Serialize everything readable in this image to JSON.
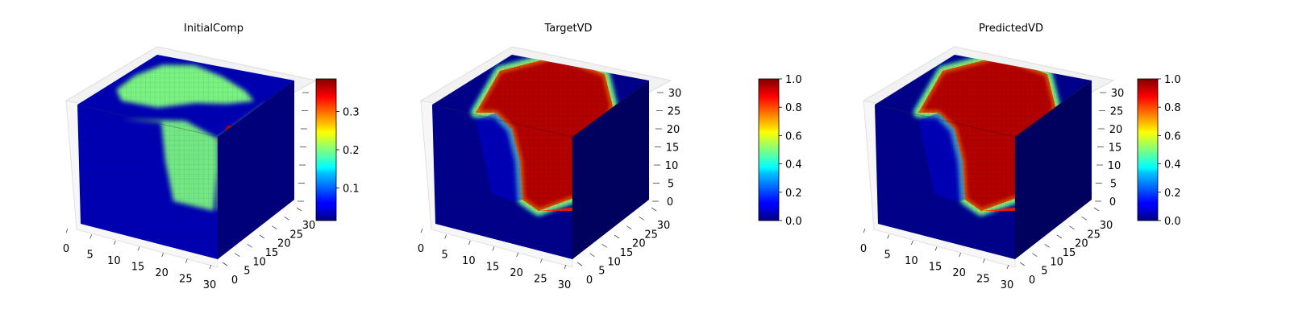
{
  "chart_data": [
    {
      "type": "heatmap",
      "subtype": "3d-voxel",
      "title": "InitialComp",
      "colormap": "jet",
      "colorbar": {
        "min": 0.015,
        "max": 0.385,
        "ticks": [
          0.1,
          0.2,
          0.3
        ],
        "tick_labels": [
          "0.1",
          "0.2",
          "0.3"
        ]
      },
      "x_ticks": [
        "0",
        "5",
        "10",
        "15",
        "20",
        "25",
        "30"
      ],
      "y_ticks": [
        "0",
        "5",
        "10",
        "15",
        "20",
        "25",
        "30"
      ],
      "z_ticks": [
        "",
        "",
        "",
        "",
        "",
        "",
        ""
      ],
      "region": {
        "inside": 0.2,
        "outside": 0.02,
        "hotspot": 0.38
      }
    },
    {
      "type": "heatmap",
      "subtype": "3d-voxel",
      "title": "TargetVD",
      "colormap": "jet",
      "colorbar": {
        "min": 0.0,
        "max": 1.0,
        "ticks": [
          0.0,
          0.2,
          0.4,
          0.6,
          0.8,
          1.0
        ],
        "tick_labels": [
          "0.0",
          "0.2",
          "0.4",
          "0.6",
          "0.8",
          "1.0"
        ]
      },
      "x_ticks": [
        "0",
        "5",
        "10",
        "15",
        "20",
        "25",
        "30"
      ],
      "y_ticks": [
        "0",
        "5",
        "10",
        "15",
        "20",
        "25",
        "30"
      ],
      "z_ticks": [
        "0",
        "5",
        "10",
        "15",
        "20",
        "25",
        "30"
      ],
      "region": {
        "inside": 1.0,
        "outside": 0.0
      }
    },
    {
      "type": "heatmap",
      "subtype": "3d-voxel",
      "title": "PredictedVD",
      "colormap": "jet",
      "colorbar": {
        "min": 0.0,
        "max": 1.0,
        "ticks": [
          0.0,
          0.2,
          0.4,
          0.6,
          0.8,
          1.0
        ],
        "tick_labels": [
          "0.0",
          "0.2",
          "0.4",
          "0.6",
          "0.8",
          "1.0"
        ]
      },
      "x_ticks": [
        "0",
        "5",
        "10",
        "15",
        "20",
        "25",
        "30"
      ],
      "y_ticks": [
        "0",
        "5",
        "10",
        "15",
        "20",
        "25",
        "30"
      ],
      "z_ticks": [
        "0",
        "5",
        "10",
        "15",
        "20",
        "25",
        "30"
      ],
      "region": {
        "inside": 1.0,
        "outside": 0.0
      }
    }
  ]
}
